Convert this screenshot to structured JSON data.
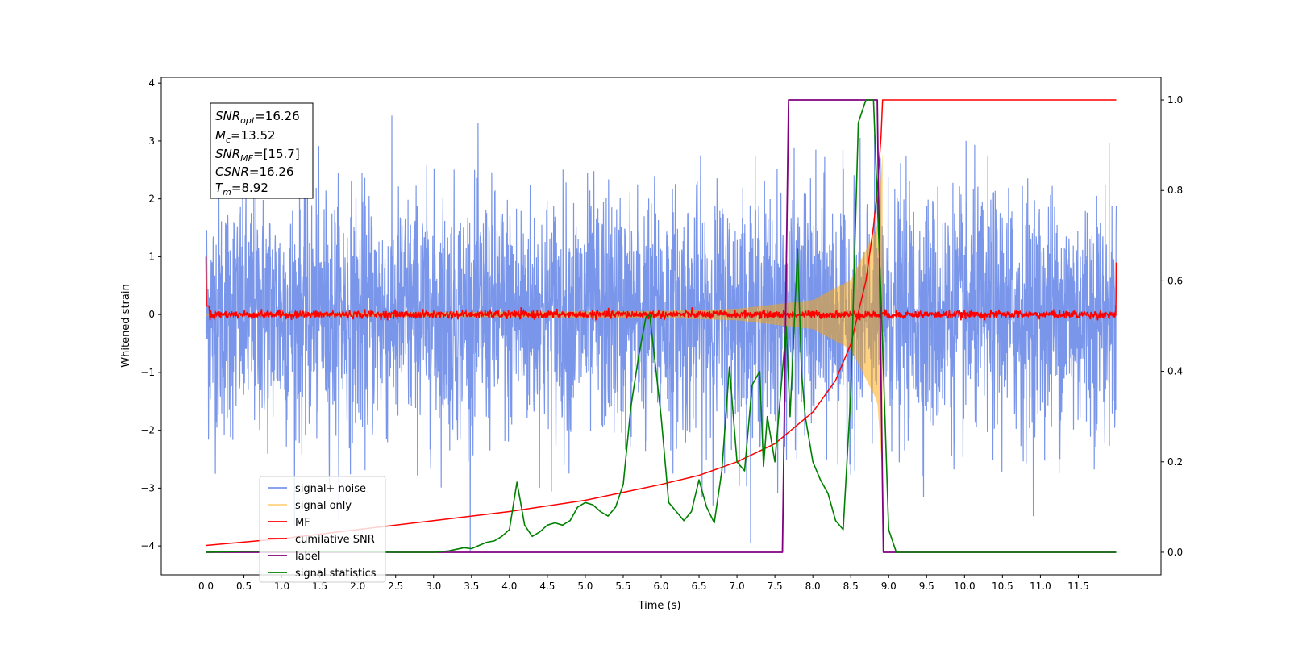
{
  "chart_data": {
    "type": "line",
    "xlabel": "Time (s)",
    "ylabel": "Whitened strain",
    "xlim": [
      -0.59,
      12.59
    ],
    "ylim": [
      -4.5,
      4.1
    ],
    "y2lim": [
      -0.05,
      1.05
    ],
    "x_ticks": [
      "0.0",
      "0.5",
      "1.0",
      "1.5",
      "2.0",
      "2.5",
      "3.0",
      "3.5",
      "4.0",
      "4.5",
      "5.0",
      "5.5",
      "6.0",
      "6.5",
      "7.0",
      "7.5",
      "8.0",
      "8.5",
      "9.0",
      "9.5",
      "10.0",
      "10.5",
      "11.0",
      "11.5"
    ],
    "y_ticks": [
      "4",
      "3",
      "2",
      "1",
      "0",
      "−1",
      "−2",
      "−3",
      "−4"
    ],
    "y2_ticks": [
      "1.0",
      "0.8",
      "0.6",
      "0.4",
      "0.2",
      "0.0"
    ],
    "grid": false,
    "legend_position": "lower-left",
    "annotation": {
      "snr_opt_name": "SNR",
      "snr_opt_sub": "opt",
      "snr_opt_value": "=16.26",
      "mc_name": "M",
      "mc_sub": "c",
      "mc_value": "=13.52",
      "snr_mf_name": "SNR",
      "snr_mf_sub": "MF",
      "snr_mf_value": "=[15.7]",
      "csnr_name": "CSNR",
      "csnr_value": "=16.26",
      "tm_name": "T",
      "tm_sub": "m",
      "tm_value": "=8.92"
    },
    "series": [
      {
        "name": "signal+ noise",
        "color": "#4169e1",
        "axis": "left",
        "approx_range": [
          -4.1,
          3.7
        ],
        "x_range": [
          0.0,
          12.0
        ]
      },
      {
        "name": "signal only",
        "color": "#ffa500",
        "axis": "left",
        "approx_envelope": [
          [
            0.0,
            0.02
          ],
          [
            6.0,
            0.06
          ],
          [
            7.0,
            0.1
          ],
          [
            8.0,
            0.25
          ],
          [
            8.5,
            0.6
          ],
          [
            8.85,
            1.5
          ],
          [
            8.92,
            2.8
          ]
        ]
      },
      {
        "name": "MF",
        "color": "#ff0000",
        "axis": "left",
        "approx_range": [
          -0.1,
          0.15
        ],
        "start_value": 1.0,
        "end_value": 0.9
      },
      {
        "name": "cumilative SNR",
        "color": "#ff0000",
        "axis": "right",
        "x": [
          0.0,
          1.0,
          2.0,
          3.0,
          4.0,
          5.0,
          6.0,
          6.5,
          7.0,
          7.5,
          8.0,
          8.3,
          8.5,
          8.7,
          8.8,
          8.85,
          8.9,
          8.92,
          9.0,
          10.0,
          11.0,
          12.0
        ],
        "values": [
          0.015,
          0.03,
          0.05,
          0.07,
          0.09,
          0.115,
          0.15,
          0.17,
          0.2,
          0.24,
          0.31,
          0.38,
          0.46,
          0.6,
          0.72,
          0.8,
          0.92,
          1.0,
          1.0,
          1.0,
          1.0,
          1.0
        ]
      },
      {
        "name": "label",
        "color": "#800080",
        "axis": "right",
        "x": [
          0.0,
          7.6,
          7.68,
          8.85,
          8.93,
          12.0
        ],
        "values": [
          0.0,
          0.0,
          1.0,
          1.0,
          0.0,
          0.0
        ]
      },
      {
        "name": "signal statistics",
        "color": "#008000",
        "axis": "right",
        "x": [
          0.0,
          0.5,
          1.0,
          1.5,
          2.0,
          2.5,
          3.0,
          3.2,
          3.4,
          3.5,
          3.6,
          3.7,
          3.8,
          3.9,
          4.0,
          4.1,
          4.2,
          4.3,
          4.4,
          4.5,
          4.6,
          4.7,
          4.8,
          4.9,
          5.0,
          5.1,
          5.2,
          5.3,
          5.4,
          5.5,
          5.6,
          5.7,
          5.8,
          5.85,
          5.9,
          6.0,
          6.1,
          6.2,
          6.3,
          6.4,
          6.5,
          6.6,
          6.7,
          6.8,
          6.9,
          7.0,
          7.1,
          7.2,
          7.3,
          7.35,
          7.4,
          7.5,
          7.6,
          7.65,
          7.7,
          7.8,
          7.85,
          7.9,
          8.0,
          8.1,
          8.2,
          8.3,
          8.4,
          8.5,
          8.6,
          8.7,
          8.8,
          8.9,
          9.0,
          9.1,
          9.5,
          10.0,
          11.0,
          12.0
        ],
        "values": [
          0.0,
          0.002,
          0.002,
          0.001,
          0.001,
          0.0,
          0.0,
          0.003,
          0.01,
          0.008,
          0.015,
          0.022,
          0.025,
          0.035,
          0.05,
          0.155,
          0.06,
          0.035,
          0.045,
          0.06,
          0.065,
          0.06,
          0.07,
          0.1,
          0.11,
          0.105,
          0.09,
          0.08,
          0.1,
          0.15,
          0.32,
          0.43,
          0.52,
          0.525,
          0.45,
          0.3,
          0.11,
          0.09,
          0.07,
          0.09,
          0.16,
          0.1,
          0.065,
          0.18,
          0.41,
          0.2,
          0.18,
          0.37,
          0.4,
          0.19,
          0.3,
          0.2,
          0.4,
          0.5,
          0.3,
          0.67,
          0.4,
          0.3,
          0.2,
          0.16,
          0.13,
          0.07,
          0.05,
          0.35,
          0.95,
          1.0,
          1.0,
          0.56,
          0.05,
          0.0,
          0.0,
          0.0,
          0.0,
          0.0
        ]
      }
    ]
  }
}
